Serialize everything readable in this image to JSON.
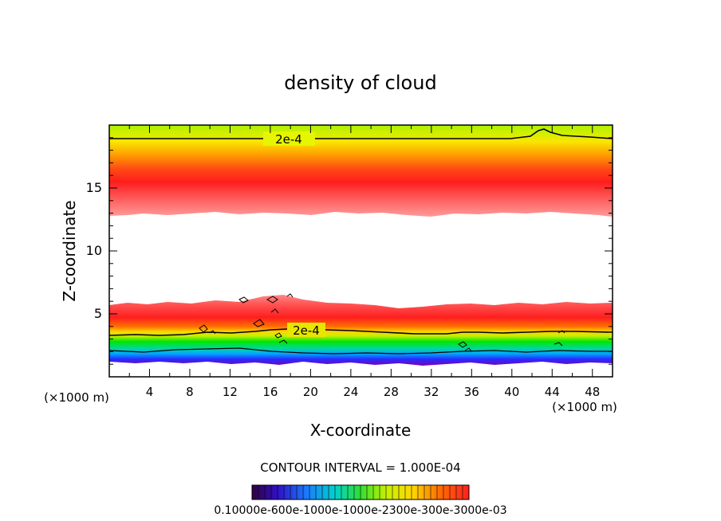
{
  "chart_data": {
    "type": "heatmap",
    "title": "density of cloud",
    "xlabel": "X-coordinate",
    "ylabel": "Z-coordinate",
    "x_unit_left": "(×1000 m)",
    "x_unit_right": "(×1000 m)",
    "xlim": [
      0,
      50
    ],
    "ylim": [
      0,
      20
    ],
    "x_ticks": [
      4,
      8,
      12,
      16,
      20,
      24,
      28,
      32,
      36,
      40,
      44,
      48
    ],
    "y_ticks": [
      5,
      10,
      15
    ],
    "contour_labels": [
      {
        "text": "2e-4",
        "x": 17.5,
        "z": 18.7
      },
      {
        "text": "2e-4",
        "x": 19.5,
        "z": 3.6
      }
    ],
    "footer": "CONTOUR INTERVAL = 1.000E-04",
    "colorbar_tick_labels": "0.10000e-600e-1000e-1000e-2300e-300e-3000e-03",
    "colorbar_range": [
      0.0001,
      0.0003
    ],
    "contour_interval": 0.0001,
    "upper_layer": {
      "z_bottom": 12.8,
      "z_peak": 15.0,
      "z_top": 20.0,
      "contour_2e-4_z": 18.8
    },
    "lower_layer": {
      "z_bottom": 1.4,
      "z_peak": 4.6,
      "z_top": 5.7,
      "contour_2e-4_z": 3.5
    }
  }
}
